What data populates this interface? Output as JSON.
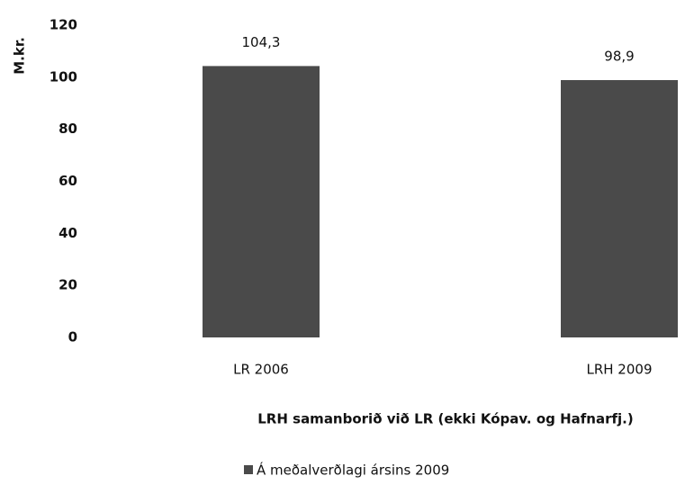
{
  "chart_data": {
    "type": "bar",
    "y_label": "M.kr.",
    "x_label": "LRH samanborið við LR (ekki Kópav. og Hafnarfj.)",
    "categories": [
      "LR 2006",
      "LRH 2009"
    ],
    "series": [
      {
        "name": "Á meðalverðlagi ársins 2009",
        "color": "#4a4a4a",
        "values": [
          104.3,
          98.9
        ],
        "value_labels": [
          "104,3",
          "98,9"
        ]
      }
    ],
    "ylim": [
      0,
      120
    ],
    "yticks": [
      0,
      20,
      40,
      60,
      80,
      100,
      120
    ],
    "grid": false,
    "legend": "bottom"
  }
}
